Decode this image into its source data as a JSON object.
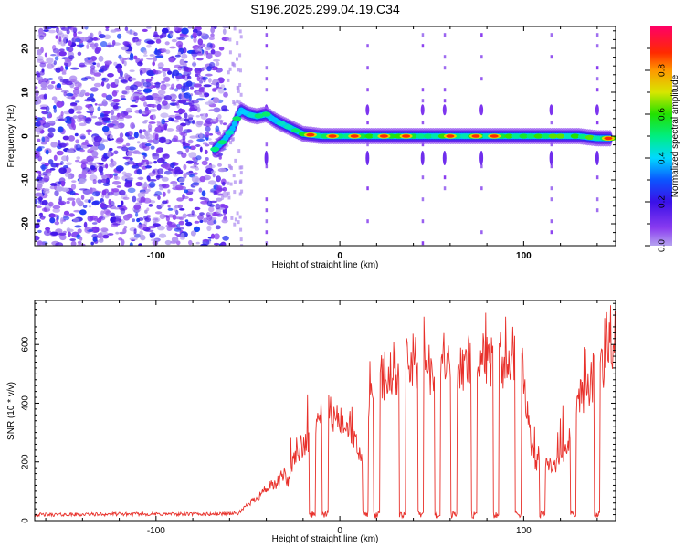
{
  "title": "S196.2025.299.04.19.C34",
  "chart_data": [
    {
      "type": "heatmap",
      "title": "S196.2025.299.04.19.C34",
      "xlabel": "Height of straight line (km)",
      "ylabel": "Frequency (Hz)",
      "xlim": [
        -166,
        150
      ],
      "ylim": [
        -25,
        25
      ],
      "x_ticks": [
        "-100",
        "0",
        "100"
      ],
      "x_tick_values": [
        -100,
        0,
        100
      ],
      "y_ticks": [
        "-20",
        "-10",
        "0",
        "10",
        "20"
      ],
      "y_tick_values": [
        -20,
        -10,
        0,
        10,
        20
      ],
      "colorbar": {
        "label": "Normalized spectral amplitude",
        "range": [
          0,
          1
        ],
        "ticks": [
          "0.0",
          "0.2",
          "0.4",
          "0.6",
          "0.8"
        ],
        "tick_values": [
          0,
          0.2,
          0.4,
          0.6,
          0.8
        ],
        "colormap": "rainbow (magenta–purple–blue–cyan–green–yellow–orange–red–pink)"
      },
      "noise_region_x": [
        -166,
        -62
      ],
      "peak_track": {
        "x": [
          -68,
          -63,
          -58,
          -54,
          -50,
          -45,
          -40,
          -35,
          -30,
          -25,
          -20,
          -10,
          0,
          10,
          20,
          30,
          40,
          50,
          60,
          70,
          80,
          90,
          100,
          110,
          120,
          130,
          140,
          148
        ],
        "freq_hz": [
          -3,
          -1,
          2,
          6,
          5,
          4.5,
          5,
          3.5,
          2.5,
          1.5,
          0.5,
          0,
          0,
          0,
          0,
          0,
          0,
          0,
          0,
          0,
          0,
          0,
          0,
          0,
          0,
          0,
          -0.5,
          -0.5
        ]
      },
      "hot_spots_x": [
        -16,
        -4,
        8,
        24,
        36,
        60,
        74,
        84,
        146
      ]
    },
    {
      "type": "line",
      "xlabel": "Height of straight line (km)",
      "ylabel": "SNR (10 * v/v)",
      "xlim": [
        -166,
        150
      ],
      "ylim": [
        0,
        750
      ],
      "x_ticks": [
        "-100",
        "0",
        "100"
      ],
      "x_tick_values": [
        -100,
        0,
        100
      ],
      "y_ticks": [
        "0",
        "200",
        "400",
        "600"
      ],
      "y_tick_values": [
        0,
        200,
        400,
        600
      ],
      "series": [
        {
          "name": "SNR",
          "color": "#e8302a",
          "x": [
            -166,
            -150,
            -120,
            -90,
            -70,
            -55,
            -50,
            -45,
            -40,
            -35,
            -30,
            -28,
            -25,
            -20,
            -15,
            -12,
            -10,
            -8,
            -5,
            0,
            5,
            10,
            14,
            16,
            18,
            20,
            25,
            30,
            35,
            40,
            42,
            45,
            50,
            55,
            58,
            60,
            65,
            70,
            75,
            78,
            80,
            85,
            90,
            95,
            100,
            103,
            106,
            108,
            110,
            115,
            120,
            125,
            130,
            135,
            140,
            145,
            150
          ],
          "y": [
            20,
            20,
            22,
            22,
            22,
            25,
            55,
            80,
            110,
            120,
            160,
            130,
            200,
            260,
            290,
            360,
            390,
            380,
            370,
            330,
            300,
            240,
            190,
            380,
            440,
            460,
            500,
            520,
            530,
            530,
            540,
            530,
            520,
            540,
            545,
            540,
            530,
            545,
            540,
            560,
            550,
            540,
            550,
            540,
            500,
            300,
            190,
            220,
            200,
            180,
            210,
            280,
            400,
            460,
            520,
            560,
            570
          ]
        }
      ],
      "dropouts_x": [
        -15,
        -8,
        14,
        20,
        34,
        44,
        53,
        62,
        73,
        85,
        97,
        110,
        127,
        140
      ]
    }
  ]
}
